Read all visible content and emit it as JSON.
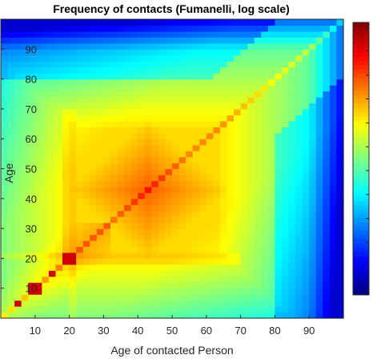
{
  "chart_data": {
    "type": "heatmap",
    "title": "Frequency of contacts (Fumanelli, log scale)",
    "xlabel": "Age of contacted Person",
    "ylabel": "Age",
    "xlim": [
      0,
      100
    ],
    "ylim": [
      0,
      100
    ],
    "xticks": [
      10,
      20,
      30,
      40,
      50,
      60,
      70,
      80,
      90
    ],
    "yticks": [
      10,
      20,
      30,
      40,
      50,
      60,
      70,
      80,
      90
    ],
    "grid": false,
    "colormap": "jet",
    "colorbar": {
      "placement": "right",
      "tick_labels_visible": "cropped"
    },
    "cells_per_axis": 50,
    "features": {
      "diagonal_peak_ages": [
        [
          5,
          5
        ],
        [
          10,
          10
        ],
        [
          15,
          15
        ],
        [
          20,
          20
        ]
      ],
      "central_peak_age": [
        43,
        43
      ],
      "low_frequency_edges": [
        "age above 90",
        "contacted age above 90"
      ]
    }
  }
}
